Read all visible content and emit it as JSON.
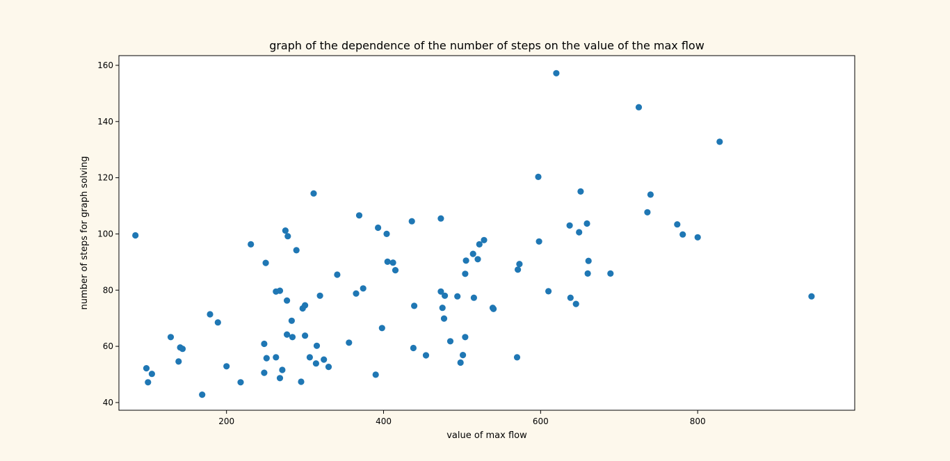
{
  "chart_data": {
    "type": "scatter",
    "title": "graph of the dependence of the number of steps on the value of the max flow",
    "xlabel": "value of max flow",
    "ylabel": "number of steps for graph solving",
    "xlim": [
      63,
      1000
    ],
    "ylim": [
      37.26,
      163.45
    ],
    "xticks": [
      200,
      400,
      600,
      800
    ],
    "yticks": [
      40,
      60,
      80,
      100,
      120,
      140,
      160
    ],
    "grid": false,
    "legend": "none",
    "colors": {
      "marker": "#1f77b4",
      "plot_background": "#ffffff",
      "figure_background": "#fdf8ec"
    },
    "points": [
      [
        84,
        99.5
      ],
      [
        98,
        52.2
      ],
      [
        100,
        47.2
      ],
      [
        105,
        50.2
      ],
      [
        129,
        63.3
      ],
      [
        139,
        54.6
      ],
      [
        141,
        59.6
      ],
      [
        144,
        59.1
      ],
      [
        169,
        42.8
      ],
      [
        179,
        71.4
      ],
      [
        189,
        68.5
      ],
      [
        200,
        52.9
      ],
      [
        218,
        47.2
      ],
      [
        231,
        96.3
      ],
      [
        248,
        60.9
      ],
      [
        248,
        50.6
      ],
      [
        250,
        89.7
      ],
      [
        251,
        55.8
      ],
      [
        263,
        79.5
      ],
      [
        263,
        56.1
      ],
      [
        268,
        79.8
      ],
      [
        268,
        48.7
      ],
      [
        271,
        51.6
      ],
      [
        275,
        101.2
      ],
      [
        277,
        64.2
      ],
      [
        277,
        76.3
      ],
      [
        278,
        99.2
      ],
      [
        283,
        69.1
      ],
      [
        284,
        63.3
      ],
      [
        289,
        94.2
      ],
      [
        295,
        47.4
      ],
      [
        297,
        73.5
      ],
      [
        300,
        74.6
      ],
      [
        300,
        63.8
      ],
      [
        306,
        56.1
      ],
      [
        311,
        114.4
      ],
      [
        314,
        53.9
      ],
      [
        315,
        60.2
      ],
      [
        319,
        78.0
      ],
      [
        324,
        55.3
      ],
      [
        330,
        52.7
      ],
      [
        341,
        85.5
      ],
      [
        356,
        61.3
      ],
      [
        365,
        78.8
      ],
      [
        369,
        106.6
      ],
      [
        374,
        80.6
      ],
      [
        390,
        49.9
      ],
      [
        393,
        102.2
      ],
      [
        398,
        66.5
      ],
      [
        404,
        100.0
      ],
      [
        405,
        90.1
      ],
      [
        412,
        89.8
      ],
      [
        415,
        87.1
      ],
      [
        436,
        104.5
      ],
      [
        438,
        59.4
      ],
      [
        439,
        74.4
      ],
      [
        454,
        56.8
      ],
      [
        473,
        105.5
      ],
      [
        473,
        79.5
      ],
      [
        475,
        73.7
      ],
      [
        477,
        69.9
      ],
      [
        478,
        78.0
      ],
      [
        485,
        61.8
      ],
      [
        494,
        77.8
      ],
      [
        498,
        54.2
      ],
      [
        501,
        56.9
      ],
      [
        504,
        63.3
      ],
      [
        504,
        85.8
      ],
      [
        505,
        90.5
      ],
      [
        514,
        92.9
      ],
      [
        515,
        77.3
      ],
      [
        520,
        91.0
      ],
      [
        522,
        96.3
      ],
      [
        528,
        97.8
      ],
      [
        539,
        73.7
      ],
      [
        540,
        73.3
      ],
      [
        570,
        56.1
      ],
      [
        571,
        87.3
      ],
      [
        573,
        89.3
      ],
      [
        597,
        120.3
      ],
      [
        598,
        97.3
      ],
      [
        610,
        79.6
      ],
      [
        620,
        157.2
      ],
      [
        637,
        103.0
      ],
      [
        638,
        77.3
      ],
      [
        645,
        75.1
      ],
      [
        649,
        100.6
      ],
      [
        651,
        115.1
      ],
      [
        659,
        103.7
      ],
      [
        660,
        85.9
      ],
      [
        661,
        90.4
      ],
      [
        689,
        85.9
      ],
      [
        725,
        145.1
      ],
      [
        736,
        107.7
      ],
      [
        740,
        114.0
      ],
      [
        774,
        103.4
      ],
      [
        781,
        99.8
      ],
      [
        800,
        98.8
      ],
      [
        828,
        132.8
      ],
      [
        945,
        77.8
      ]
    ]
  }
}
